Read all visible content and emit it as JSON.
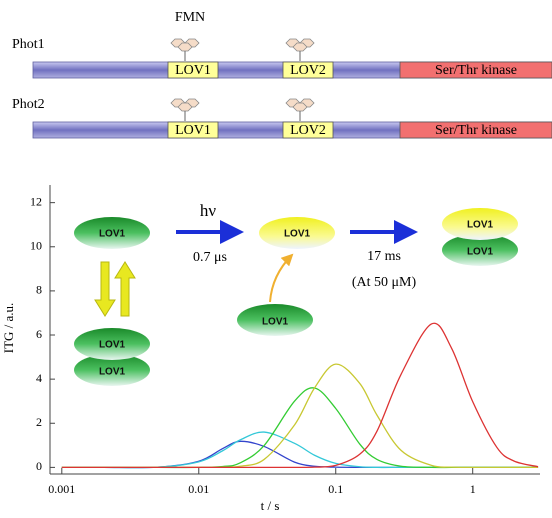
{
  "diagram": {
    "fmn": "FMN",
    "proteins": [
      {
        "name": "Phot1",
        "domains": [
          "LOV1",
          "LOV2",
          "Ser/Thr kinase"
        ]
      },
      {
        "name": "Phot2",
        "domains": [
          "LOV1",
          "LOV2",
          "Ser/Thr kinase"
        ]
      }
    ],
    "scheme": {
      "molecules": [
        "LOV1",
        "LOV1",
        "LOV1",
        "LOV1",
        "LOV1",
        "LOV1",
        "LOV1"
      ],
      "texts": [
        "hν",
        "0.7 μs",
        "17 ms",
        "(At 50 μM)"
      ]
    }
  },
  "chart_data": {
    "type": "line",
    "xlabel": "t / s",
    "ylabel": "ITG / a.u.",
    "log_x": true,
    "x": [
      0.001,
      0.002,
      0.005,
      0.01,
      0.015,
      0.02,
      0.03,
      0.05,
      0.07,
      0.1,
      0.15,
      0.2,
      0.3,
      0.5,
      0.7,
      1,
      1.5,
      2,
      3
    ],
    "series": [
      {
        "color": "#3344cc",
        "values": [
          0,
          0,
          0.01,
          0.28,
          0.86,
          1.18,
          0.95,
          0.24,
          0.05,
          0.01,
          0,
          0,
          0,
          0,
          0,
          0,
          0,
          0,
          0
        ]
      },
      {
        "color": "#33c8d8",
        "values": [
          0,
          0,
          0.01,
          0.25,
          0.76,
          1.24,
          1.6,
          1.09,
          0.55,
          0.18,
          0.03,
          0,
          0,
          0,
          0,
          0,
          0,
          0,
          0
        ]
      },
      {
        "color": "#33cc33",
        "values": [
          0,
          0,
          0,
          0,
          0.04,
          0.2,
          0.99,
          3.0,
          3.6,
          2.67,
          1.05,
          0.36,
          0.05,
          0,
          0,
          0,
          0,
          0,
          0
        ]
      },
      {
        "color": "#c8c832",
        "values": [
          0,
          0,
          0,
          0,
          0.01,
          0.05,
          0.36,
          1.92,
          3.6,
          4.68,
          3.8,
          2.37,
          0.77,
          0.09,
          0.01,
          0,
          0,
          0,
          0
        ]
      },
      {
        "color": "#dd3333",
        "values": [
          0,
          0,
          0,
          0,
          0,
          0,
          0,
          0,
          0.01,
          0.09,
          0.6,
          1.64,
          4.22,
          6.5,
          5.41,
          2.98,
          0.91,
          0.29,
          0.03
        ]
      }
    ],
    "xlim": [
      0.00082,
      3.1
    ],
    "xticks": [
      0.001,
      0.01,
      0.1,
      1
    ],
    "ylim": [
      -0.3,
      12.8
    ],
    "yticks": [
      0,
      2,
      4,
      6,
      8,
      10,
      12
    ]
  }
}
